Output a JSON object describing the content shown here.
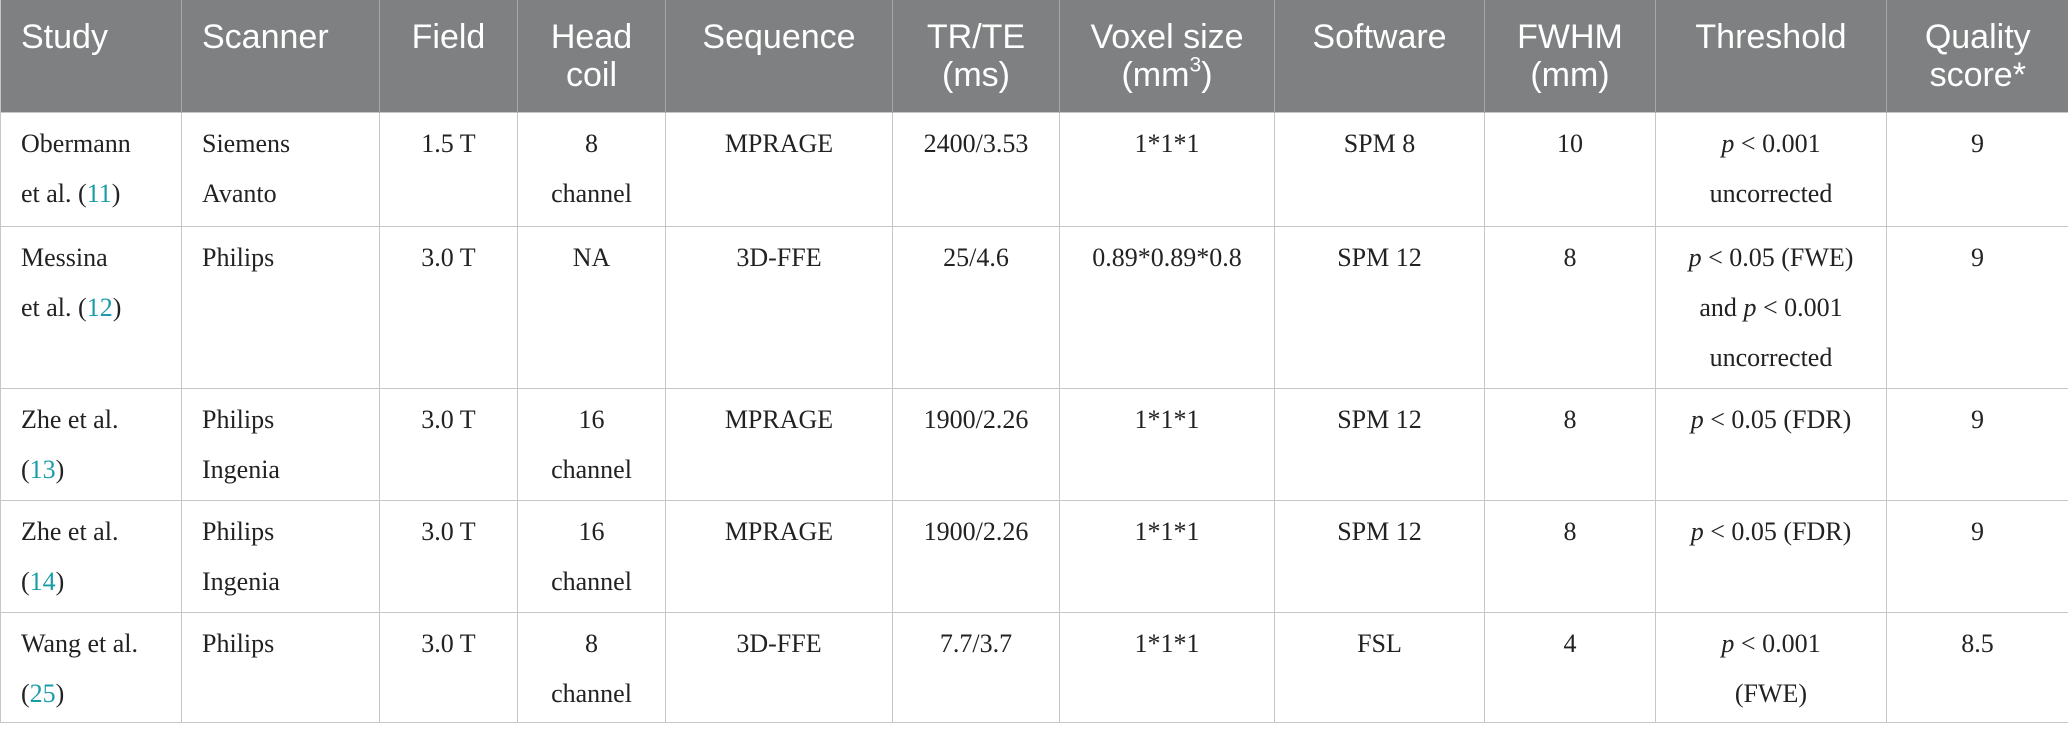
{
  "table": {
    "header": [
      [
        [
          "Study"
        ]
      ],
      [
        [
          "Scanner"
        ]
      ],
      [
        [
          "Field"
        ]
      ],
      [
        [
          "Head"
        ],
        [
          "coil"
        ]
      ],
      [
        [
          "Sequence"
        ]
      ],
      [
        [
          "TR/TE"
        ],
        [
          "(ms)"
        ]
      ],
      [
        [
          "Voxel size"
        ],
        [
          "(mm",
          {
            "sup": "3"
          },
          ")"
        ]
      ],
      [
        [
          "Software"
        ]
      ],
      [
        [
          "FWHM"
        ],
        [
          "(mm)"
        ]
      ],
      [
        [
          "Threshold"
        ]
      ],
      [
        [
          "Quality"
        ],
        [
          "score*"
        ]
      ]
    ],
    "rows": [
      [
        [
          [
            "Obermann"
          ],
          [
            "et al. (",
            {
              "ref": "11"
            },
            ")"
          ]
        ],
        [
          [
            "Siemens"
          ],
          [
            "Avanto"
          ]
        ],
        [
          [
            "1.5 T"
          ]
        ],
        [
          [
            "8"
          ],
          [
            "channel"
          ]
        ],
        [
          [
            "MPRAGE"
          ]
        ],
        [
          [
            "2400/3.53"
          ]
        ],
        [
          [
            "1*1*1"
          ]
        ],
        [
          [
            "SPM 8"
          ]
        ],
        [
          [
            "10"
          ]
        ],
        [
          [
            {
              "i": "p"
            },
            " < 0.001"
          ],
          [
            "uncorrected"
          ]
        ],
        [
          [
            "9"
          ]
        ]
      ],
      [
        [
          [
            "Messina"
          ],
          [
            "et al. (",
            {
              "ref": "12"
            },
            ")"
          ]
        ],
        [
          [
            "Philips"
          ]
        ],
        [
          [
            "3.0 T"
          ]
        ],
        [
          [
            "NA"
          ]
        ],
        [
          [
            "3D-FFE"
          ]
        ],
        [
          [
            "25/4.6"
          ]
        ],
        [
          [
            "0.89*0.89*0.8"
          ]
        ],
        [
          [
            "SPM 12"
          ]
        ],
        [
          [
            "8"
          ]
        ],
        [
          [
            {
              "i": "p"
            },
            " < 0.05 (FWE)"
          ],
          [
            "and ",
            {
              "i": "p"
            },
            " < 0.001"
          ],
          [
            "uncorrected"
          ]
        ],
        [
          [
            "9"
          ]
        ]
      ],
      [
        [
          [
            "Zhe et al."
          ],
          [
            "(",
            {
              "ref": "13"
            },
            ")"
          ]
        ],
        [
          [
            "Philips"
          ],
          [
            "Ingenia"
          ]
        ],
        [
          [
            "3.0 T"
          ]
        ],
        [
          [
            "16"
          ],
          [
            "channel"
          ]
        ],
        [
          [
            "MPRAGE"
          ]
        ],
        [
          [
            "1900/2.26"
          ]
        ],
        [
          [
            "1*1*1"
          ]
        ],
        [
          [
            "SPM 12"
          ]
        ],
        [
          [
            "8"
          ]
        ],
        [
          [
            {
              "i": "p"
            },
            " < 0.05 (FDR)"
          ]
        ],
        [
          [
            "9"
          ]
        ]
      ],
      [
        [
          [
            "Zhe et al."
          ],
          [
            "(",
            {
              "ref": "14"
            },
            ")"
          ]
        ],
        [
          [
            "Philips"
          ],
          [
            "Ingenia"
          ]
        ],
        [
          [
            "3.0 T"
          ]
        ],
        [
          [
            "16"
          ],
          [
            "channel"
          ]
        ],
        [
          [
            "MPRAGE"
          ]
        ],
        [
          [
            "1900/2.26"
          ]
        ],
        [
          [
            "1*1*1"
          ]
        ],
        [
          [
            "SPM 12"
          ]
        ],
        [
          [
            "8"
          ]
        ],
        [
          [
            {
              "i": "p"
            },
            " < 0.05 (FDR)"
          ]
        ],
        [
          [
            "9"
          ]
        ]
      ],
      [
        [
          [
            "Wang et al."
          ],
          [
            "(",
            {
              "ref": "25"
            },
            ")"
          ]
        ],
        [
          [
            "Philips"
          ]
        ],
        [
          [
            "3.0 T"
          ]
        ],
        [
          [
            "8"
          ],
          [
            "channel"
          ]
        ],
        [
          [
            "3D-FFE"
          ]
        ],
        [
          [
            "7.7/3.7"
          ]
        ],
        [
          [
            "1*1*1"
          ]
        ],
        [
          [
            "FSL"
          ]
        ],
        [
          [
            "4"
          ]
        ],
        [
          [
            {
              "i": "p"
            },
            " < 0.001"
          ],
          [
            "(FWE)"
          ]
        ],
        [
          [
            "8.5"
          ]
        ]
      ]
    ]
  }
}
